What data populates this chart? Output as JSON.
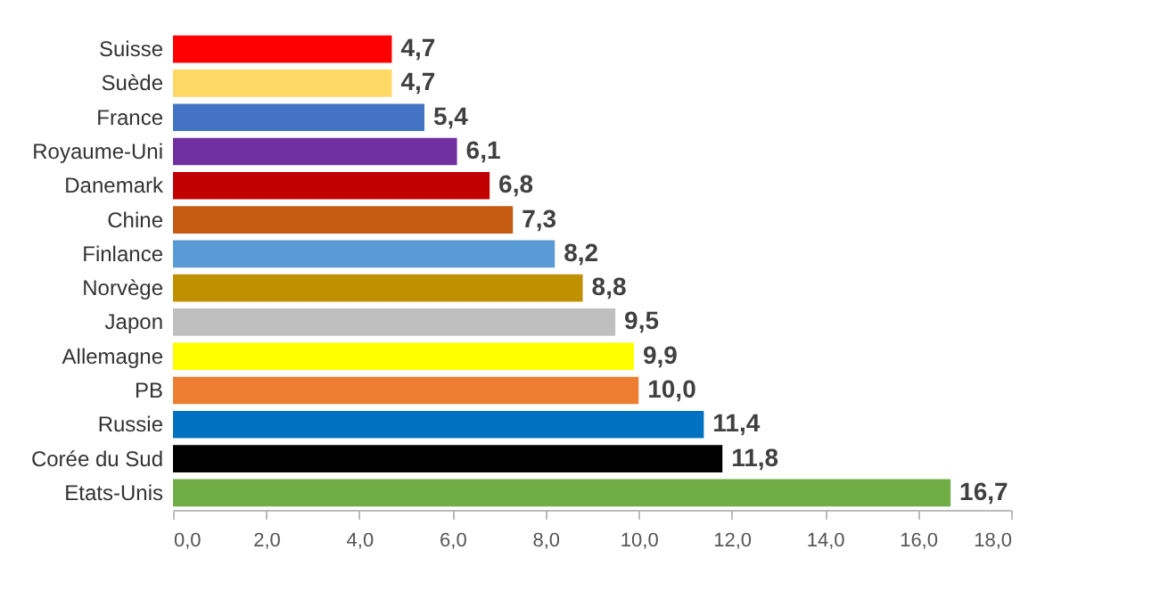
{
  "chart_data": {
    "type": "bar",
    "orientation": "horizontal",
    "categories": [
      "Suisse",
      "Suède",
      "France",
      "Royaume-Uni",
      "Danemark",
      "Chine",
      "Finlance",
      "Norvège",
      "Japon",
      "Allemagne",
      "PB",
      "Russie",
      "Corée du Sud",
      "Etats-Unis"
    ],
    "values": [
      4.7,
      4.7,
      5.4,
      6.1,
      6.8,
      7.3,
      8.2,
      8.8,
      9.5,
      9.9,
      10.0,
      11.4,
      11.8,
      16.7
    ],
    "value_labels": [
      "4,7",
      "4,7",
      "5,4",
      "6,1",
      "6,8",
      "7,3",
      "8,2",
      "8,8",
      "9,5",
      "9,9",
      "10,0",
      "11,4",
      "11,8",
      "16,7"
    ],
    "colors": [
      "#ff0000",
      "#ffd966",
      "#4472c4",
      "#7030a0",
      "#c00000",
      "#c55a11",
      "#5b9bd5",
      "#bf9000",
      "#bfbfbf",
      "#ffff00",
      "#ed7d31",
      "#0070c0",
      "#000000",
      "#70ad47"
    ],
    "xlim": [
      0,
      18
    ],
    "xticks": [
      {
        "value": 0,
        "label": "0,0"
      },
      {
        "value": 2,
        "label": "2,0"
      },
      {
        "value": 4,
        "label": "4,0"
      },
      {
        "value": 6,
        "label": "6,0"
      },
      {
        "value": 8,
        "label": "8,0"
      },
      {
        "value": 10,
        "label": "10,0"
      },
      {
        "value": 12,
        "label": "12,0"
      },
      {
        "value": 14,
        "label": "14,0"
      },
      {
        "value": 16,
        "label": "16,0"
      },
      {
        "value": 18,
        "label": "18,0"
      }
    ],
    "grid": false
  }
}
